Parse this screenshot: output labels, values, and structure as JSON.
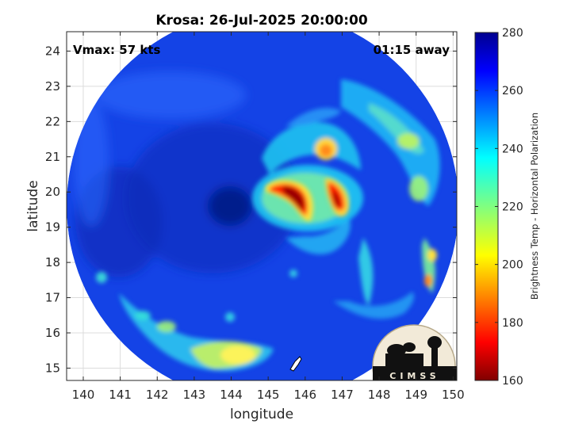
{
  "chart_data": {
    "type": "heatmap",
    "title": "Krosa: 26-Jul-2025 20:00:00",
    "xlabel": "longitude",
    "ylabel": "latitude",
    "xlim": [
      139.55,
      150.1
    ],
    "ylim": [
      14.65,
      24.55
    ],
    "xticks": [
      "140",
      "141",
      "142",
      "143",
      "144",
      "145",
      "146",
      "147",
      "148",
      "149",
      "150"
    ],
    "yticks": [
      "15",
      "16",
      "17",
      "18",
      "19",
      "20",
      "21",
      "22",
      "23",
      "24"
    ],
    "annotation_left": "Vmax: 57 kts",
    "annotation_right": "01:15 away",
    "grid": true,
    "colorbar": {
      "label": "Brightness Temp - Horizontal Polarization",
      "range": [
        160,
        280
      ],
      "ticks": [
        "280",
        "260",
        "240",
        "220",
        "200",
        "180",
        "160"
      ],
      "colormap": "jet"
    },
    "swath": {
      "center_lon": 144.85,
      "center_lat": 19.6,
      "radius_deg_lon": 5.3,
      "background_tb": 262
    },
    "features": [
      {
        "name": "eye",
        "lon": 144.0,
        "lat": 19.7,
        "tb": 268
      },
      {
        "name": "west eyewall",
        "lon": 145.55,
        "lat": 19.9,
        "tb": 165
      },
      {
        "name": "east eyewall",
        "lon": 146.7,
        "lat": 19.95,
        "tb": 172
      },
      {
        "name": "north band",
        "lon": 146.5,
        "lat": 21.0,
        "tb": 200
      },
      {
        "name": "northeast band",
        "lon": 147.9,
        "lat": 21.3,
        "tb": 225
      },
      {
        "name": "southwest rainband",
        "lon": 143.0,
        "lat": 15.5,
        "tb": 215
      },
      {
        "name": "east outer band",
        "lon": 149.2,
        "lat": 17.6,
        "tb": 205
      }
    ]
  },
  "logo": {
    "name": "CIMSS",
    "text": "CIMSS"
  },
  "colors": {
    "axis": "#262626",
    "grid": "#dcdcdc"
  }
}
